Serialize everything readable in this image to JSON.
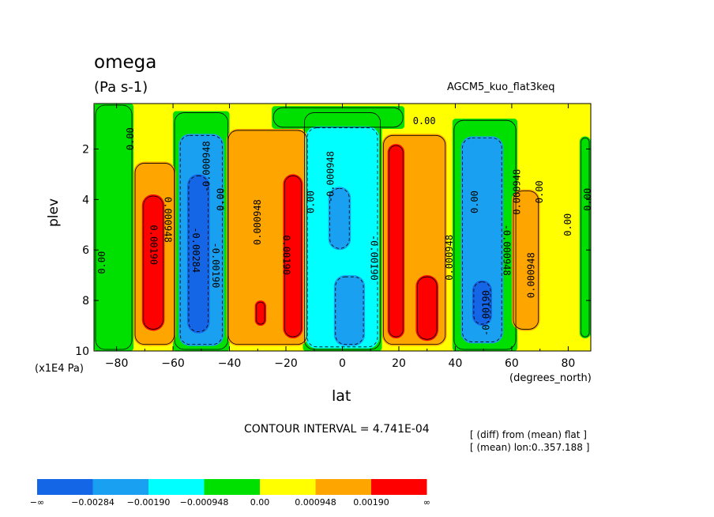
{
  "header": {
    "title": "omega",
    "units": "(Pa s-1)",
    "experiment": "AGCM5_kuo_flat3keq"
  },
  "axes": {
    "ylabel": "plev",
    "yunit": "(x1E4 Pa)",
    "xlabel": "lat",
    "xunit": "(degrees_north)"
  },
  "footer": {
    "contour_interval": "CONTOUR INTERVAL = 4.741E-04",
    "note1": "[ (diff) from (mean) flat ]",
    "note2": "[ (mean) lon:0..357.188 ]"
  },
  "chart_data": {
    "type": "heatmap",
    "xlim": [
      -88,
      88
    ],
    "ylim": [
      10,
      0.2
    ],
    "xticks": [
      -80,
      -60,
      -40,
      -20,
      0,
      20,
      40,
      60,
      80
    ],
    "xtick_labels": [
      "−80",
      "−60",
      "−40",
      "−20",
      "0",
      "20",
      "40",
      "60",
      "80"
    ],
    "yticks": [
      2,
      4,
      6,
      8,
      10
    ],
    "ytick_labels": [
      "2",
      "4",
      "6",
      "8",
      "10"
    ],
    "colors": {
      "navy": "#1466e6",
      "blue": "#1aa0f0",
      "cyan": "#00ffff",
      "green": "#00e000",
      "yellow": "#ffff00",
      "orange": "#ffa500",
      "red": "#ff0000"
    },
    "levels": [
      -0.00284,
      -0.0019,
      -0.000948,
      0.0,
      0.000948,
      0.0019
    ],
    "colorbar_labels": [
      "−∞",
      "−0.00284",
      "−0.00190",
      "−0.000948",
      "0.00",
      "0.000948",
      "0.00190",
      "∞"
    ],
    "colorbar_colors": [
      "navy",
      "blue",
      "cyan",
      "green",
      "yellow",
      "orange",
      "red"
    ],
    "regions": [
      {
        "cat": "green",
        "lat": [
          -88,
          -74
        ],
        "p": [
          0.2,
          10
        ],
        "shape": "band"
      },
      {
        "cat": "green",
        "lat": [
          -60,
          -40
        ],
        "p": [
          0.5,
          10
        ],
        "shape": "band"
      },
      {
        "cat": "green",
        "lat": [
          -14,
          14
        ],
        "p": [
          0.5,
          10
        ],
        "shape": "band"
      },
      {
        "cat": "green",
        "lat": [
          39,
          62
        ],
        "p": [
          0.8,
          10
        ],
        "shape": "band"
      },
      {
        "cat": "green",
        "lat": [
          -25,
          22
        ],
        "p": [
          0.3,
          1.2
        ],
        "shape": "band"
      },
      {
        "cat": "green",
        "lat": [
          84,
          88
        ],
        "p": [
          1.5,
          9.5
        ],
        "shape": "blob"
      },
      {
        "cat": "orange",
        "lat": [
          -74,
          -59
        ],
        "p": [
          2.5,
          9.8
        ],
        "shape": "blob"
      },
      {
        "cat": "orange",
        "lat": [
          -41,
          -12
        ],
        "p": [
          1.2,
          9.8
        ],
        "shape": "blob"
      },
      {
        "cat": "orange",
        "lat": [
          14,
          37
        ],
        "p": [
          1.4,
          9.8
        ],
        "shape": "blob"
      },
      {
        "cat": "orange",
        "lat": [
          60,
          70
        ],
        "p": [
          3.6,
          9.2
        ],
        "shape": "blob"
      },
      {
        "cat": "red",
        "lat": [
          -71,
          -63
        ],
        "p": [
          3.8,
          9.2
        ],
        "shape": "blob"
      },
      {
        "cat": "red",
        "lat": [
          -21,
          -14
        ],
        "p": [
          3.0,
          9.5
        ],
        "shape": "blob"
      },
      {
        "cat": "red",
        "lat": [
          -31,
          -27
        ],
        "p": [
          8.0,
          9.0
        ],
        "shape": "blob"
      },
      {
        "cat": "red",
        "lat": [
          16,
          22
        ],
        "p": [
          1.8,
          9.5
        ],
        "shape": "blob"
      },
      {
        "cat": "red",
        "lat": [
          26,
          34
        ],
        "p": [
          7.0,
          9.6
        ],
        "shape": "blob"
      },
      {
        "cat": "blue",
        "lat": [
          -58,
          -42
        ],
        "p": [
          1.4,
          9.8
        ],
        "shape": "blob"
      },
      {
        "cat": "cyan",
        "lat": [
          -13,
          13
        ],
        "p": [
          1.1,
          9.9
        ],
        "shape": "blob"
      },
      {
        "cat": "blue",
        "lat": [
          -5,
          3
        ],
        "p": [
          3.5,
          6.0
        ],
        "shape": "blob"
      },
      {
        "cat": "blue",
        "lat": [
          -3,
          8
        ],
        "p": [
          7.0,
          9.8
        ],
        "shape": "blob"
      },
      {
        "cat": "blue",
        "lat": [
          42,
          57
        ],
        "p": [
          1.5,
          9.7
        ],
        "shape": "blob"
      },
      {
        "cat": "navy",
        "lat": [
          -55,
          -47
        ],
        "p": [
          3.0,
          9.3
        ],
        "shape": "blob"
      },
      {
        "cat": "navy",
        "lat": [
          46,
          53
        ],
        "p": [
          7.2,
          9.0
        ],
        "shape": "blob"
      }
    ],
    "contour_labels": [
      {
        "text": "0.00",
        "lat": -85,
        "p": 6.5,
        "rot": -90
      },
      {
        "text": "0.00",
        "lat": -75,
        "p": 1.6,
        "rot": -90
      },
      {
        "text": "0.00190",
        "lat": -67,
        "p": 5.8,
        "rot": 90
      },
      {
        "text": "0.000948",
        "lat": -62,
        "p": 4.8,
        "rot": 90
      },
      {
        "text": "-0.00284",
        "lat": -52,
        "p": 6.0,
        "rot": 90
      },
      {
        "text": "-0.00190",
        "lat": -45,
        "p": 6.6,
        "rot": 90
      },
      {
        "text": "-0.000948",
        "lat": -48,
        "p": 2.7,
        "rot": -90
      },
      {
        "text": "0.00",
        "lat": -43,
        "p": 4.0,
        "rot": -90
      },
      {
        "text": "0.000948",
        "lat": -30,
        "p": 4.9,
        "rot": -90
      },
      {
        "text": "0.00190",
        "lat": -20,
        "p": 6.2,
        "rot": 90
      },
      {
        "text": "0.00",
        "lat": -11,
        "p": 4.1,
        "rot": -90
      },
      {
        "text": "-0.000948",
        "lat": -4,
        "p": 3.1,
        "rot": -90
      },
      {
        "text": "-0.00190",
        "lat": 11,
        "p": 6.3,
        "rot": 90
      },
      {
        "text": "0.000948",
        "lat": 38,
        "p": 6.3,
        "rot": -90
      },
      {
        "text": "0.00",
        "lat": 47,
        "p": 4.1,
        "rot": -90
      },
      {
        "text": "-0.00190",
        "lat": 51,
        "p": 8.5,
        "rot": -90
      },
      {
        "text": "-0.000948",
        "lat": 58,
        "p": 6.0,
        "rot": 90
      },
      {
        "text": "0.000948",
        "lat": 62,
        "p": 3.7,
        "rot": -90
      },
      {
        "text": "0.00",
        "lat": 70,
        "p": 3.7,
        "rot": -90
      },
      {
        "text": "0.000948",
        "lat": 67,
        "p": 7.0,
        "rot": -90
      },
      {
        "text": "0.00",
        "lat": 80,
        "p": 5.0,
        "rot": -90
      },
      {
        "text": "0.00",
        "lat": 87,
        "p": 4.0,
        "rot": -90
      },
      {
        "text": "0.00",
        "lat": 29,
        "p": 0.9,
        "rot": 0
      }
    ]
  }
}
